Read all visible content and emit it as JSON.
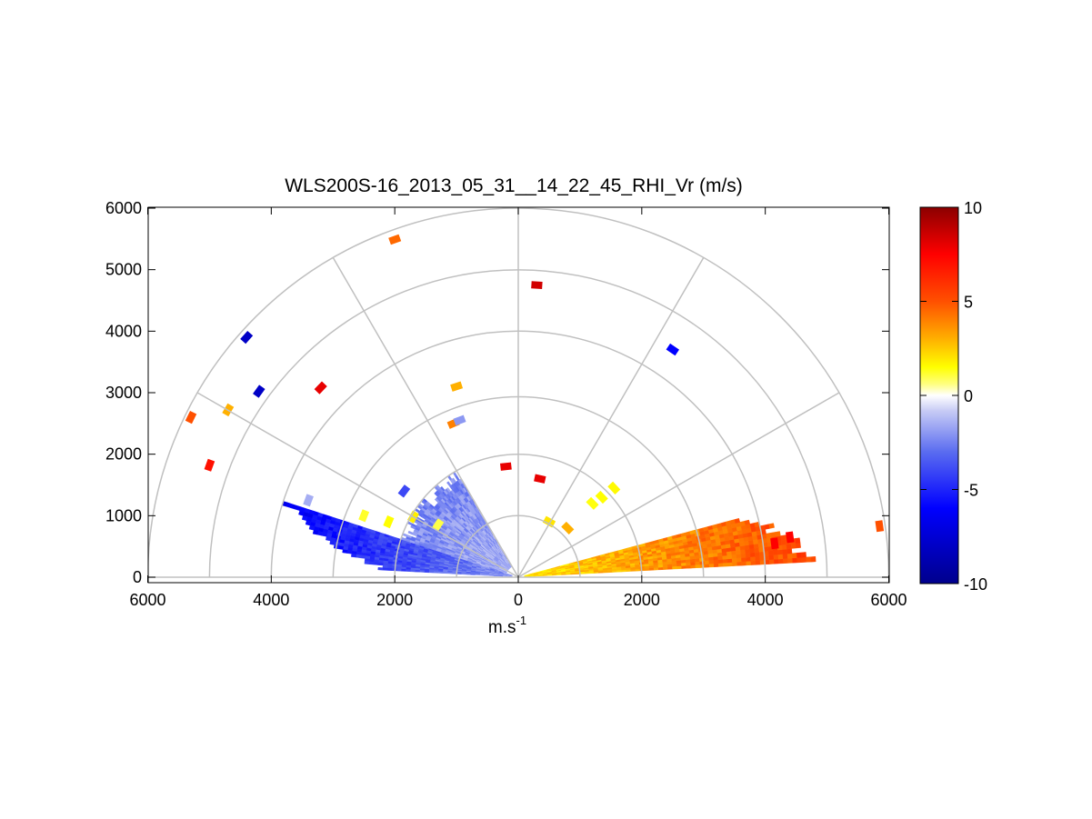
{
  "chart_data": {
    "type": "heatmap",
    "subtype": "polar-rhi-scan",
    "title": "WLS200S-16_2013_05_31__14_22_45_RHI_Vr (m/s)",
    "xlabel_base": "m.s",
    "xlabel_exponent": "-1",
    "xlim": [
      -6000,
      6000
    ],
    "ylim": [
      0,
      6000
    ],
    "x_ticks": [
      -6000,
      -4000,
      -2000,
      0,
      2000,
      4000,
      6000
    ],
    "x_tick_labels": [
      "6000",
      "4000",
      "2000",
      "0",
      "2000",
      "4000",
      "6000"
    ],
    "y_ticks": [
      0,
      1000,
      2000,
      3000,
      4000,
      5000,
      6000
    ],
    "y_tick_labels": [
      "0",
      "1000",
      "2000",
      "3000",
      "4000",
      "5000",
      "6000"
    ],
    "polar_grid": {
      "ring_ranges": [
        1000,
        2000,
        3000,
        4000,
        5000,
        6000
      ],
      "spoke_angles_deg": [
        0,
        30,
        60,
        90,
        120,
        150,
        180
      ],
      "color": "#c0c0c0"
    },
    "colorbar": {
      "min": -10,
      "max": 10,
      "ticks": [
        10,
        5,
        0,
        -5,
        -10
      ],
      "tick_labels": [
        "10",
        "5",
        "0",
        "-5",
        "-10"
      ],
      "colormap_stops": [
        {
          "v": -10,
          "color": "#00008c"
        },
        {
          "v": -6,
          "color": "#0000ff"
        },
        {
          "v": -3,
          "color": "#5a6cf0"
        },
        {
          "v": -0.8,
          "color": "#c8ccf5"
        },
        {
          "v": 0,
          "color": "#ffffff"
        },
        {
          "v": 0.6,
          "color": "#ffff80"
        },
        {
          "v": 1.5,
          "color": "#ffff00"
        },
        {
          "v": 3,
          "color": "#ffb000"
        },
        {
          "v": 5,
          "color": "#ff5000"
        },
        {
          "v": 7.5,
          "color": "#ff0000"
        },
        {
          "v": 10,
          "color": "#8b0000"
        }
      ]
    },
    "scan_sectors": [
      {
        "name": "negative-sector",
        "elev_deg": [
          162,
          177
        ],
        "range_m": [
          100,
          4000
        ],
        "vr_near": -2,
        "vr_far": -6.5
      },
      {
        "name": "upper-sector",
        "elev_deg": [
          120,
          162
        ],
        "range_m": [
          200,
          2000
        ],
        "vr_near": -1.5,
        "vr_far": -2.5
      },
      {
        "name": "positive-sector",
        "elev_deg": [
          3,
          15
        ],
        "range_m": [
          100,
          4900
        ],
        "vr_near": 2,
        "vr_far": 5.5
      }
    ],
    "isolated_cells": [
      {
        "x": -2100,
        "y": 900,
        "vr": 1.5
      },
      {
        "x": -1700,
        "y": 980,
        "vr": 1.8
      },
      {
        "x": -2500,
        "y": 1000,
        "vr": 1.2
      },
      {
        "x": -1300,
        "y": 850,
        "vr": 1.0
      },
      {
        "x": 1350,
        "y": 1300,
        "vr": 1.5
      },
      {
        "x": 1550,
        "y": 1450,
        "vr": 1.6
      },
      {
        "x": 1200,
        "y": 1200,
        "vr": 1.4
      },
      {
        "x": -200,
        "y": 1800,
        "vr": 8
      },
      {
        "x": 350,
        "y": 1600,
        "vr": 8
      },
      {
        "x": 800,
        "y": 800,
        "vr": 3
      },
      {
        "x": 500,
        "y": 900,
        "vr": 2
      },
      {
        "x": -1050,
        "y": 2500,
        "vr": 4
      },
      {
        "x": -950,
        "y": 2550,
        "vr": -2
      },
      {
        "x": -1000,
        "y": 3100,
        "vr": 3
      },
      {
        "x": 300,
        "y": 4750,
        "vr": 8.5
      },
      {
        "x": 2500,
        "y": 3700,
        "vr": -6
      },
      {
        "x": -3200,
        "y": 3080,
        "vr": 8
      },
      {
        "x": -4200,
        "y": 3020,
        "vr": -8
      },
      {
        "x": -4400,
        "y": 3900,
        "vr": -8
      },
      {
        "x": -4700,
        "y": 2720,
        "vr": 3
      },
      {
        "x": -5300,
        "y": 2600,
        "vr": 5
      },
      {
        "x": -5000,
        "y": 1820,
        "vr": 7
      },
      {
        "x": -2000,
        "y": 5490,
        "vr": 4.5
      },
      {
        "x": 5850,
        "y": 830,
        "vr": 5
      },
      {
        "x": 4400,
        "y": 650,
        "vr": 7.5
      },
      {
        "x": 4150,
        "y": 550,
        "vr": 7.5
      },
      {
        "x": -3400,
        "y": 1250,
        "vr": -1.5
      },
      {
        "x": -1850,
        "y": 1400,
        "vr": -4
      }
    ]
  }
}
